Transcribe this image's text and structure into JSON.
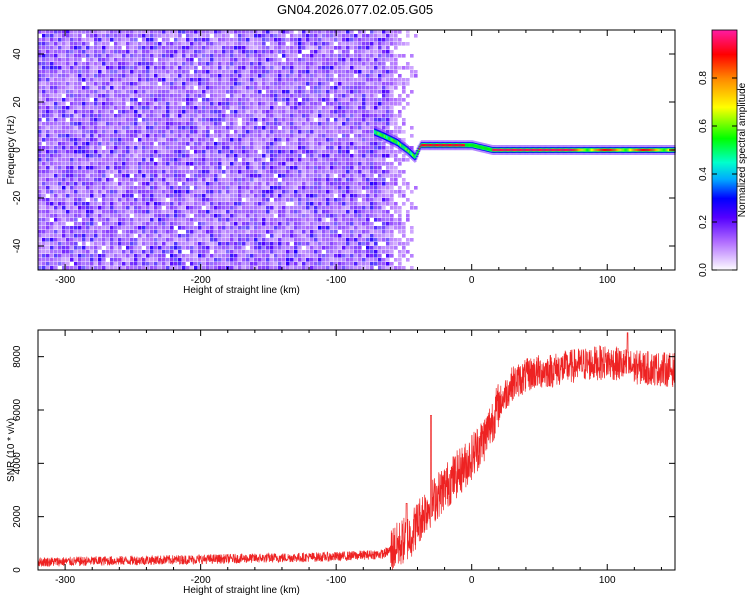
{
  "chart_data": [
    {
      "type": "heatmap",
      "title": "GN04.2026.077.02.05.G05",
      "xlabel": "Height of straight line (km)",
      "ylabel": "Frequency (Hz)",
      "xlim": [
        -320,
        150
      ],
      "ylim": [
        -50,
        50
      ],
      "xticks": [
        -300,
        -200,
        -100,
        0,
        100
      ],
      "yticks": [
        -40,
        -20,
        0,
        20,
        40
      ],
      "xtick_labels": [
        "-300",
        "-200",
        "-100",
        "0",
        "100"
      ],
      "ytick_labels": [
        "-40",
        "-20",
        "0",
        "20",
        "40"
      ],
      "noise_region_x": [
        -320,
        -62
      ],
      "signal_trace": [
        {
          "x": -70,
          "y": 7
        },
        {
          "x": -62,
          "y": 5
        },
        {
          "x": -55,
          "y": 3
        },
        {
          "x": -48,
          "y": 0
        },
        {
          "x": -42,
          "y": -3
        },
        {
          "x": -38,
          "y": 2
        },
        {
          "x": -10,
          "y": 2
        },
        {
          "x": 0,
          "y": 2
        },
        {
          "x": 15,
          "y": 0
        },
        {
          "x": 80,
          "y": 0
        },
        {
          "x": 150,
          "y": 0
        }
      ],
      "colorbar": {
        "label": "Normalized spectral amplitude",
        "range": [
          0,
          1
        ],
        "ticks": [
          0.0,
          0.2,
          0.4,
          0.6,
          0.8
        ],
        "tick_labels": [
          "0.0",
          "0.2",
          "0.4",
          "0.6",
          "0.8"
        ]
      }
    },
    {
      "type": "line",
      "xlabel": "Height of straight line (km)",
      "ylabel": "SNR (10 * v/v)",
      "xlim": [
        -320,
        150
      ],
      "ylim": [
        0,
        9000
      ],
      "xticks": [
        -300,
        -200,
        -100,
        0,
        100
      ],
      "yticks": [
        0,
        2000,
        4000,
        6000,
        8000
      ],
      "xtick_labels": [
        "-300",
        "-200",
        "-100",
        "0",
        "100"
      ],
      "ytick_labels": [
        "0",
        "2000",
        "4000",
        "6000",
        "8000"
      ],
      "color": "#ee2222",
      "trend": [
        {
          "x": -320,
          "y": 300
        },
        {
          "x": -200,
          "y": 400
        },
        {
          "x": -100,
          "y": 500
        },
        {
          "x": -65,
          "y": 600
        },
        {
          "x": -55,
          "y": 900
        },
        {
          "x": -45,
          "y": 1300
        },
        {
          "x": -35,
          "y": 2200
        },
        {
          "x": -20,
          "y": 3100
        },
        {
          "x": -5,
          "y": 3900
        },
        {
          "x": 10,
          "y": 5000
        },
        {
          "x": 20,
          "y": 6200
        },
        {
          "x": 30,
          "y": 7000
        },
        {
          "x": 45,
          "y": 7400
        },
        {
          "x": 60,
          "y": 7500
        },
        {
          "x": 80,
          "y": 7700
        },
        {
          "x": 100,
          "y": 7800
        },
        {
          "x": 120,
          "y": 7600
        },
        {
          "x": 150,
          "y": 7500
        }
      ],
      "spikes": [
        {
          "x": -30,
          "y": 5800
        },
        {
          "x": -48,
          "y": 2500
        },
        {
          "x": 115,
          "y": 8900
        }
      ]
    }
  ]
}
